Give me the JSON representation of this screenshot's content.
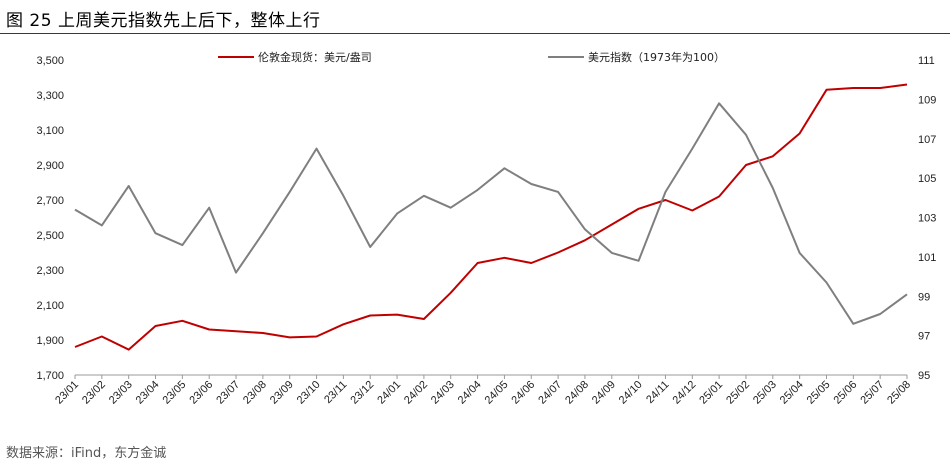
{
  "title": "图 25  上周美元指数先上后下，整体上行",
  "source": "数据来源：iFind，东方金诚",
  "chart_data": {
    "type": "line",
    "categories": [
      "23/01",
      "23/02",
      "23/03",
      "23/04",
      "23/05",
      "23/06",
      "23/07",
      "23/08",
      "23/09",
      "23/10",
      "23/11",
      "23/12",
      "24/01",
      "24/02",
      "24/03",
      "24/04",
      "24/05",
      "24/06",
      "24/07",
      "24/08",
      "24/09",
      "24/10",
      "24/11",
      "24/12",
      "25/01",
      "25/02",
      "25/03",
      "25/04",
      "25/05",
      "25/06",
      "25/07",
      "25/08"
    ],
    "y_left": {
      "min": 1700,
      "max": 3500,
      "ticks": [
        1700,
        1900,
        2100,
        2300,
        2500,
        2700,
        2900,
        3100,
        3300,
        3500
      ]
    },
    "y_right": {
      "min": 95,
      "max": 111,
      "ticks": [
        95,
        97,
        99,
        101,
        103,
        105,
        107,
        109,
        111
      ]
    },
    "legend_position": "top",
    "grid": false,
    "series": [
      {
        "name": "伦敦金现货：美元/盎司",
        "axis": "left",
        "color": "#c00000",
        "values": [
          1860,
          1920,
          1845,
          1980,
          2010,
          1960,
          1950,
          1940,
          1915,
          1920,
          1990,
          2040,
          2045,
          2020,
          2170,
          2340,
          2370,
          2340,
          2400,
          2470,
          2560,
          2650,
          2700,
          2640,
          2720,
          2900,
          2950,
          3080,
          3330,
          3340,
          3340,
          3360
        ]
      },
      {
        "name": "美元指数（1973年为100）",
        "axis": "right",
        "color": "#7f7f7f",
        "values": [
          103.4,
          102.6,
          104.6,
          102.2,
          101.6,
          103.5,
          100.2,
          102.2,
          104.3,
          106.5,
          104.1,
          101.5,
          103.2,
          104.1,
          103.5,
          104.4,
          105.5,
          104.7,
          104.3,
          102.4,
          101.2,
          100.8,
          104.3,
          106.5,
          108.8,
          107.2,
          104.5,
          101.2,
          99.7,
          97.6,
          98.1,
          99.1
        ]
      }
    ]
  }
}
